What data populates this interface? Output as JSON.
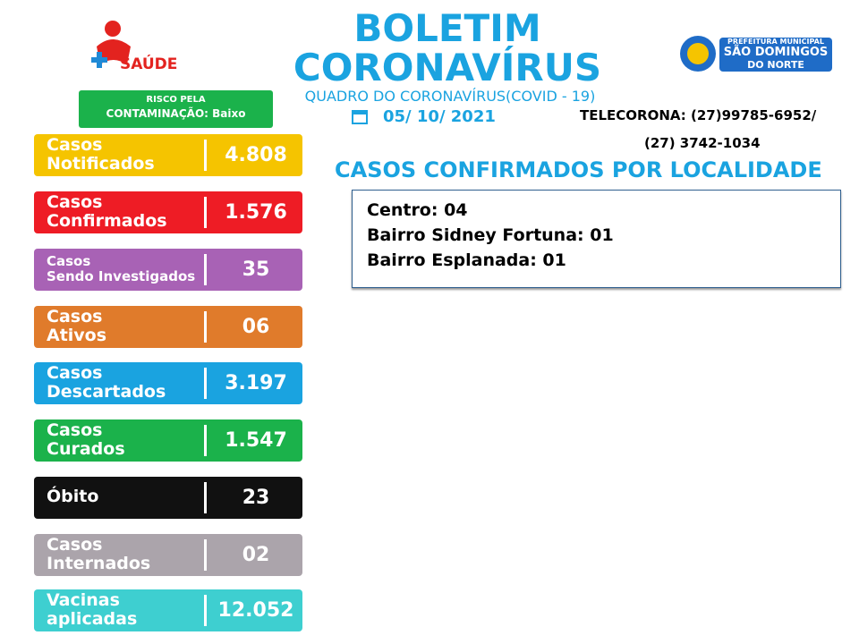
{
  "header": {
    "title_line1": "BOLETIM",
    "title_line2": "CORONAVÍRUS",
    "subtitle": "QUADRO DO CORONAVÍRUS(COVID - 19)",
    "date": "05/ 10/ 2021",
    "left_logo": "SAÚDE",
    "right_logo": {
      "line1": "PREFEITURA MUNICIPAL",
      "line2": "SÃO DOMINGOS",
      "line3": "DO NORTE"
    },
    "risk": {
      "line1": "RISCO PELA",
      "line2": "CONTAMINAÇÃO: Baixo"
    },
    "telecorona": {
      "line1": "TELECORONA: (27)99785-6952/",
      "line2": "(27) 3742-1034"
    }
  },
  "cards": [
    {
      "label": [
        "Casos",
        "Notificados"
      ],
      "value": "4.808",
      "color": "#f5c400"
    },
    {
      "label": [
        "Casos",
        "Confirmados"
      ],
      "value": "1.576",
      "color": "#ee1c25"
    },
    {
      "label": [
        "Casos",
        "Sendo Investigados"
      ],
      "value": "35",
      "color": "#a862b5"
    },
    {
      "label": [
        "Casos",
        "Ativos"
      ],
      "value": "06",
      "color": "#e07b2b"
    },
    {
      "label": [
        "Casos",
        "Descartados"
      ],
      "value": "3.197",
      "color": "#1aa3e0"
    },
    {
      "label": [
        "Casos",
        "Curados"
      ],
      "value": "1.547",
      "color": "#1bb24b"
    },
    {
      "label": [
        "Óbito"
      ],
      "value": "23",
      "color": "#111111"
    },
    {
      "label": [
        "Casos",
        "Internados"
      ],
      "value": "02",
      "color": "#aba4ab"
    },
    {
      "label": [
        "Vacinas",
        "aplicadas"
      ],
      "value": "12.052",
      "color": "#3ecfd0"
    }
  ],
  "locations": {
    "title": "CASOS CONFIRMADOS POR LOCALIDADE",
    "items": [
      "Centro: 04",
      "Bairro Sidney Fortuna: 01",
      "Bairro Esplanada: 01"
    ]
  }
}
